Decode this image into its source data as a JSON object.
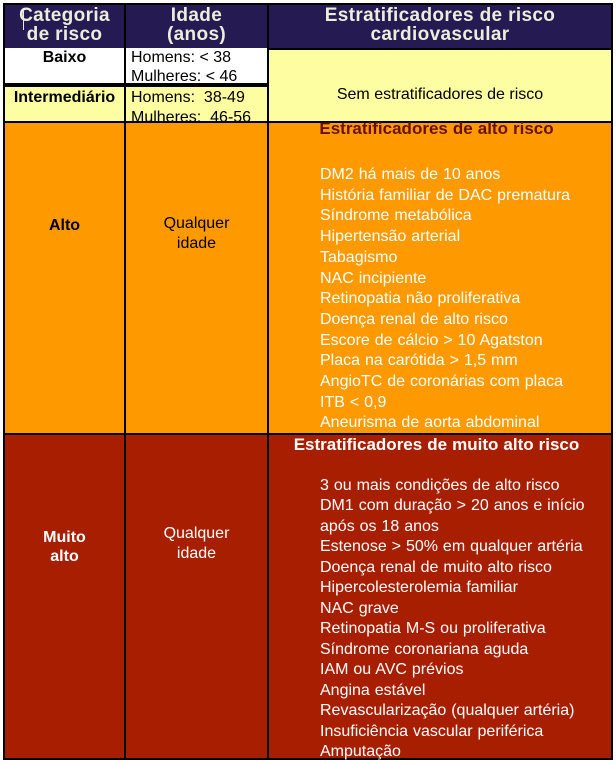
{
  "colors": {
    "header_bg": "#251A52",
    "header_text": "#EDEDDB",
    "pale_yellow": "#FDFDA2",
    "white_row": "#FFFFFF",
    "orange": "#FE9A00",
    "dark_red": "#A81E00",
    "high_risk_title": "#681000",
    "border": "#000000",
    "text_dark": "#000000",
    "text_light": "#FFFFFF",
    "page_bg": "#FFFFFF"
  },
  "header": {
    "risk_category": "Categoria\nde risco",
    "age": "Idade\n(anos)",
    "stratifiers": "Estratificadores de risco\ncardiovascular"
  },
  "rows": {
    "low": {
      "category": "Baixo",
      "age": "Homens: < 38\nMulheres: < 46"
    },
    "intermediate": {
      "category": "Intermediário",
      "age": "Homens:  38-49\nMulheres:  46-56"
    },
    "low_intermediate_stratifiers": "Sem estratificadores de risco",
    "high": {
      "category": "Alto",
      "age": "Qualquer\nidade",
      "stratifiers_title": "Estratificadores de alto risco",
      "stratifiers": [
        "DM2 há mais de 10 anos",
        "História familiar de DAC prematura",
        "Síndrome metabólica",
        "Hipertensão arterial",
        "Tabagismo",
        "NAC incipiente",
        "Retinopatia não proliferativa",
        "Doença renal de alto risco",
        "Escore de cálcio > 10 Agatston",
        "Placa na carótida > 1,5 mm",
        "AngioTC de coronárias com placa",
        "ITB < 0,9",
        "Aneurisma de aorta abdominal"
      ]
    },
    "very_high": {
      "category": "Muito\nalto",
      "age": "Qualquer\nidade",
      "stratifiers_title": "Estratificadores de muito alto risco",
      "stratifiers": [
        "3 ou mais condições de alto risco",
        "DM1 com duração > 20 anos e início após os 18 anos",
        "Estenose > 50% em qualquer artéria",
        "Doença renal de muito alto risco",
        "Hipercolesterolemia familiar",
        "NAC grave",
        "Retinopatia M-S ou proliferativa",
        "Síndrome coronariana aguda",
        "IAM ou AVC prévios",
        "Angina estável",
        "Revascularização (qualquer artéria)",
        "Insuficiência vascular periférica",
        "Amputação"
      ]
    }
  }
}
